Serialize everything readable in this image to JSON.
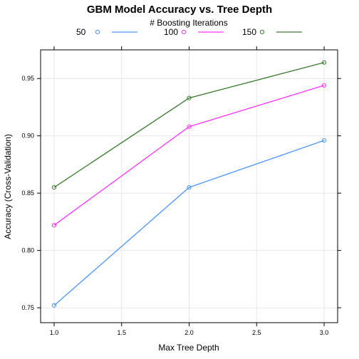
{
  "chart_data": {
    "type": "line",
    "title": "GBM Model Accuracy vs. Tree Depth",
    "legend_title": "# Boosting Iterations",
    "legend_position": "top",
    "xlabel": "Max Tree Depth",
    "ylabel": "Accuracy (Cross-Validation)",
    "xlim": [
      0.9,
      3.1
    ],
    "ylim": [
      0.737,
      0.975
    ],
    "x_ticks": [
      1.0,
      1.5,
      2.0,
      2.5,
      3.0
    ],
    "x_tick_labels": [
      "1.0",
      "1.5",
      "2.0",
      "2.5",
      "3.0"
    ],
    "y_ticks": [
      0.75,
      0.8,
      0.85,
      0.9,
      0.95
    ],
    "y_tick_labels": [
      "0.75",
      "0.80",
      "0.85",
      "0.90",
      "0.95"
    ],
    "grid": true,
    "x": [
      1.0,
      2.0,
      3.0
    ],
    "series": [
      {
        "name": "50",
        "color": "#4d94ff",
        "values": [
          0.752,
          0.855,
          0.896
        ]
      },
      {
        "name": "100",
        "color": "#ff33ff",
        "values": [
          0.822,
          0.908,
          0.944
        ]
      },
      {
        "name": "150",
        "color": "#3a7a2e",
        "values": [
          0.855,
          0.933,
          0.964
        ]
      }
    ]
  }
}
